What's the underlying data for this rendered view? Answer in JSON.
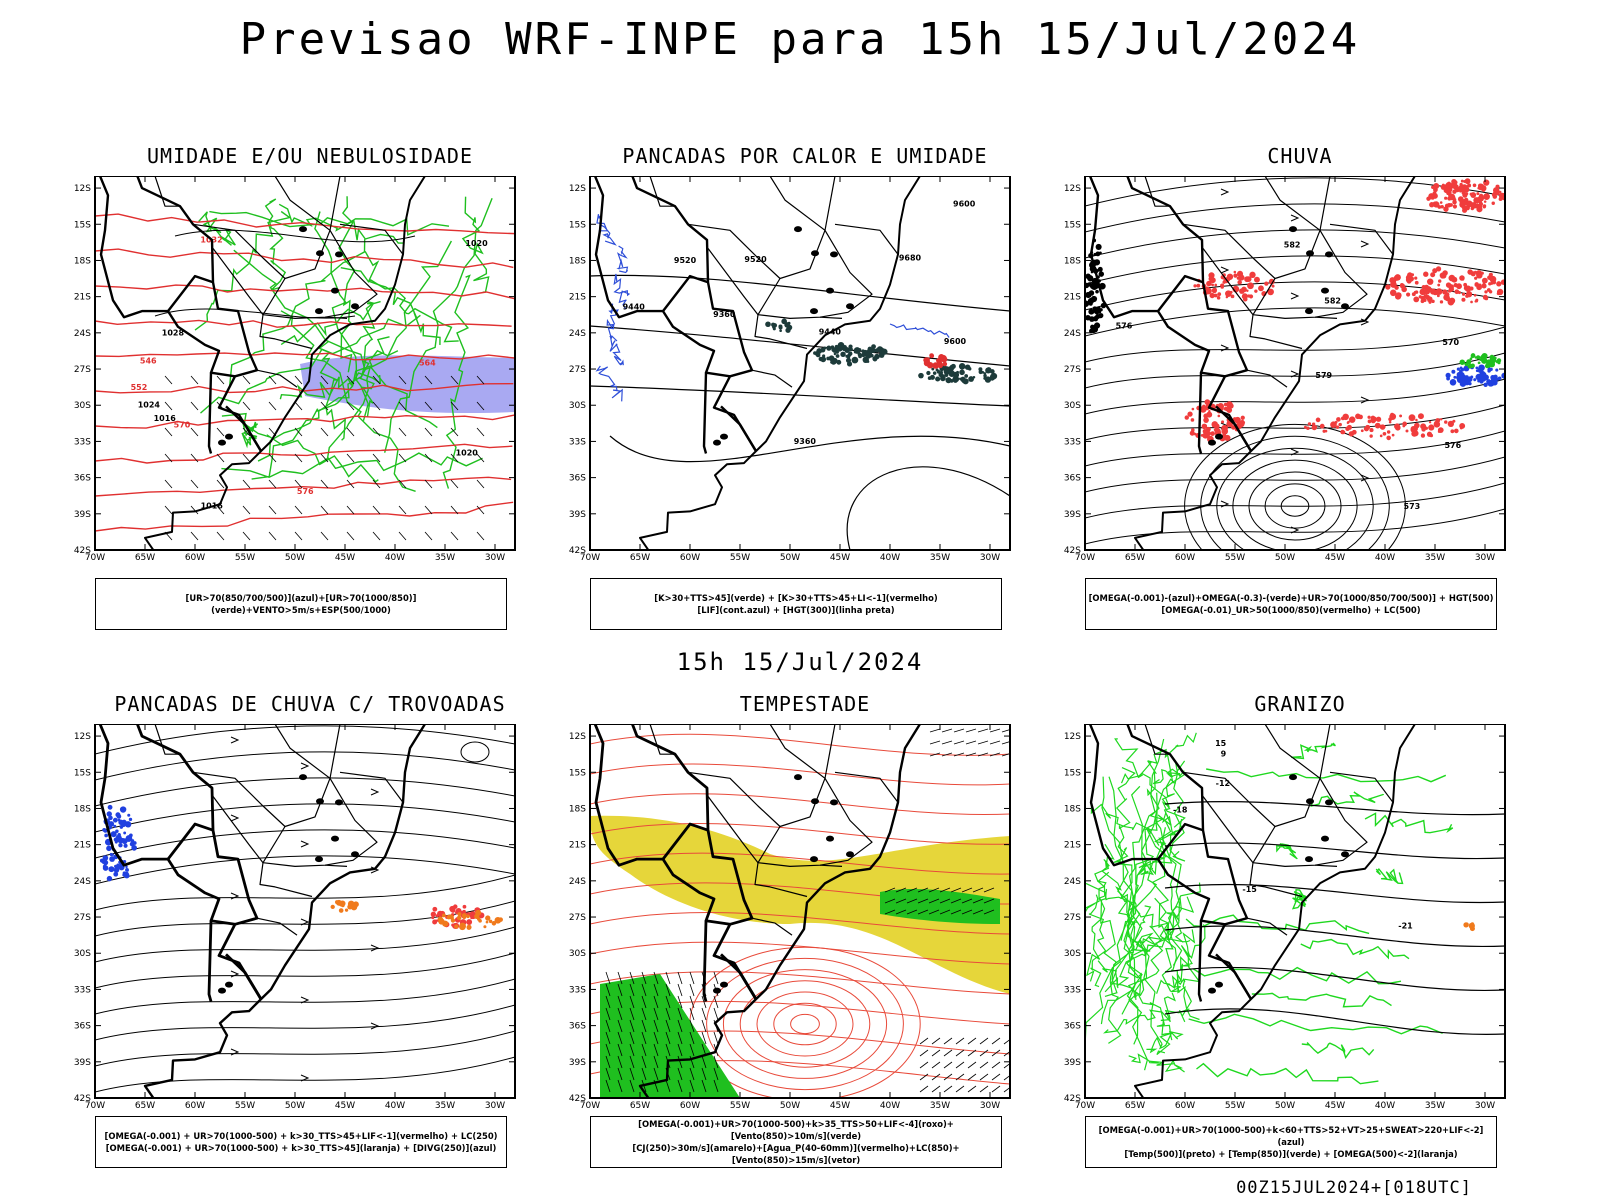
{
  "header": {
    "title": "Previsao WRF-INPE  para 15h 15/Jul/2024"
  },
  "mid_title": "15h 15/Jul/2024",
  "footer": "00Z15JUL2024+[018UTC]",
  "axes": {
    "lat_labels": [
      "12S",
      "15S",
      "18S",
      "21S",
      "24S",
      "27S",
      "30S",
      "33S",
      "36S",
      "39S",
      "42S"
    ],
    "lon_labels": [
      "70W",
      "65W",
      "60W",
      "55W",
      "50W",
      "45W",
      "40W",
      "35W",
      "30W"
    ]
  },
  "panels": [
    {
      "title": "UMIDADE E/OU NEBULOSIDADE",
      "legend": [
        "[UR>70(850/700/500)](azul)+[UR>70(1000/850)](verde)+VENTO>5m/s+ESP(500/1000)"
      ],
      "contour_labels": [
        "1016",
        "1020",
        "1016",
        "1024",
        "1020",
        "1028",
        "1032",
        "570",
        "576",
        "564",
        "552",
        "546"
      ]
    },
    {
      "title": "PANCADAS POR CALOR E UMIDADE",
      "legend": [
        "[K>30+TTS>45](verde) + [K>30+TTS>45+LI<-1](vermelho)",
        "[LIF](cont.azul) + [HGT(300)](linha preta)"
      ],
      "contour_labels": [
        "9680",
        "9600",
        "9520",
        "9440",
        "9360",
        "9600",
        "9520",
        "9440",
        "9360"
      ]
    },
    {
      "title": "CHUVA",
      "legend": [
        "[OMEGA(-0.001)-(azul)+OMEGA(-0.3)-(verde)+UR>70(1000/850/700/500)] + HGT(500)",
        "[OMEGA(-0.01)_UR>50(1000/850)(vermelho) + LC(500)"
      ],
      "contour_labels": [
        "582",
        "582",
        "576",
        "570",
        "573",
        "576",
        "579"
      ]
    },
    {
      "title": "PANCADAS DE CHUVA C/ TROVOADAS",
      "legend": [
        "[OMEGA(-0.001) + UR>70(1000-500) + k>30_TTS>45+LIF<-1](vermelho) + LC(250)",
        "[OMEGA(-0.001) + UR>70(1000-500) + k>30_TTS>45](laranja) + [DIVG(250)](azul)"
      ],
      "contour_labels": []
    },
    {
      "title": "TEMPESTADE",
      "legend": [
        "[OMEGA(-0.001)+UR>70(1000-500)+k>35_TTS>50+LIF<-4](roxo)+[Vento(850)>10m/s](verde)",
        "[CJ(250)>30m/s](amarelo)+[Agua_P(40-60mm)](vermelho)+LC(850)+[Vento(850)>15m/s](vetor)"
      ],
      "contour_labels": []
    },
    {
      "title": "GRANIZO",
      "legend": [
        "[OMEGA(-0.001)+UR>70(1000-500)+k<60+TTS>52+VT>25+SWEAT>220+LIF<-2](azul)",
        "[Temp(500)](preto) + [Temp(850)](verde) + [OMEGA(500)<-2](laranja)"
      ],
      "contour_labels": [
        "-12",
        "-15",
        "-18",
        "-21",
        "15",
        "9"
      ]
    }
  ]
}
